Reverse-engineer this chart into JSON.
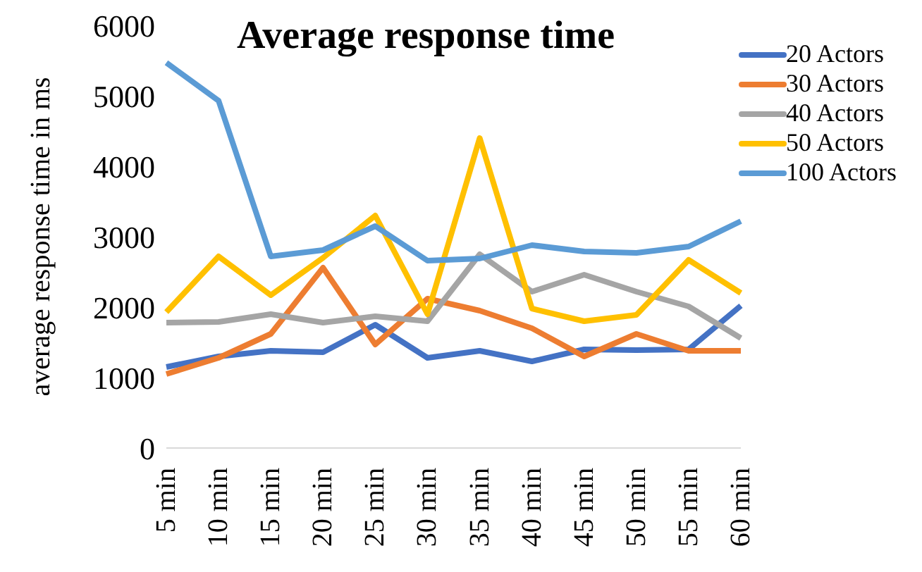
{
  "chart_data": {
    "type": "line",
    "title": "Average response time",
    "ylabel": "average response time in ms",
    "categories": [
      "5 min",
      "10 min",
      "15 min",
      "20 min",
      "25 min",
      "30 min",
      "35 min",
      "40 min",
      "45 min",
      "50 min",
      "55 min",
      "60 min"
    ],
    "series": [
      {
        "name": "20 Actors",
        "color": "#4472c4",
        "values": [
          1150,
          1300,
          1380,
          1360,
          1750,
          1280,
          1380,
          1230,
          1400,
          1390,
          1400,
          2020
        ]
      },
      {
        "name": "30 Actors",
        "color": "#ed7d31",
        "values": [
          1050,
          1280,
          1620,
          2560,
          1470,
          2120,
          1950,
          1700,
          1300,
          1620,
          1380,
          1380
        ]
      },
      {
        "name": "40 Actors",
        "color": "#a5a5a5",
        "values": [
          1780,
          1790,
          1900,
          1780,
          1870,
          1800,
          2750,
          2220,
          2460,
          2220,
          2010,
          1560
        ]
      },
      {
        "name": "50 Actors",
        "color": "#ffc000",
        "values": [
          1930,
          2720,
          2170,
          2700,
          3300,
          1900,
          4400,
          1980,
          1800,
          1890,
          2670,
          2200
        ]
      },
      {
        "name": "100 Actors",
        "color": "#5b9bd5",
        "values": [
          5470,
          4930,
          2720,
          2810,
          3150,
          2660,
          2690,
          2880,
          2790,
          2770,
          2860,
          3220
        ]
      }
    ],
    "ylim": [
      0,
      6000
    ],
    "yticks": [
      0,
      1000,
      2000,
      3000,
      4000,
      5000,
      6000
    ],
    "grid": false,
    "legend": "top right",
    "marker": "none",
    "line_style": "solid"
  }
}
